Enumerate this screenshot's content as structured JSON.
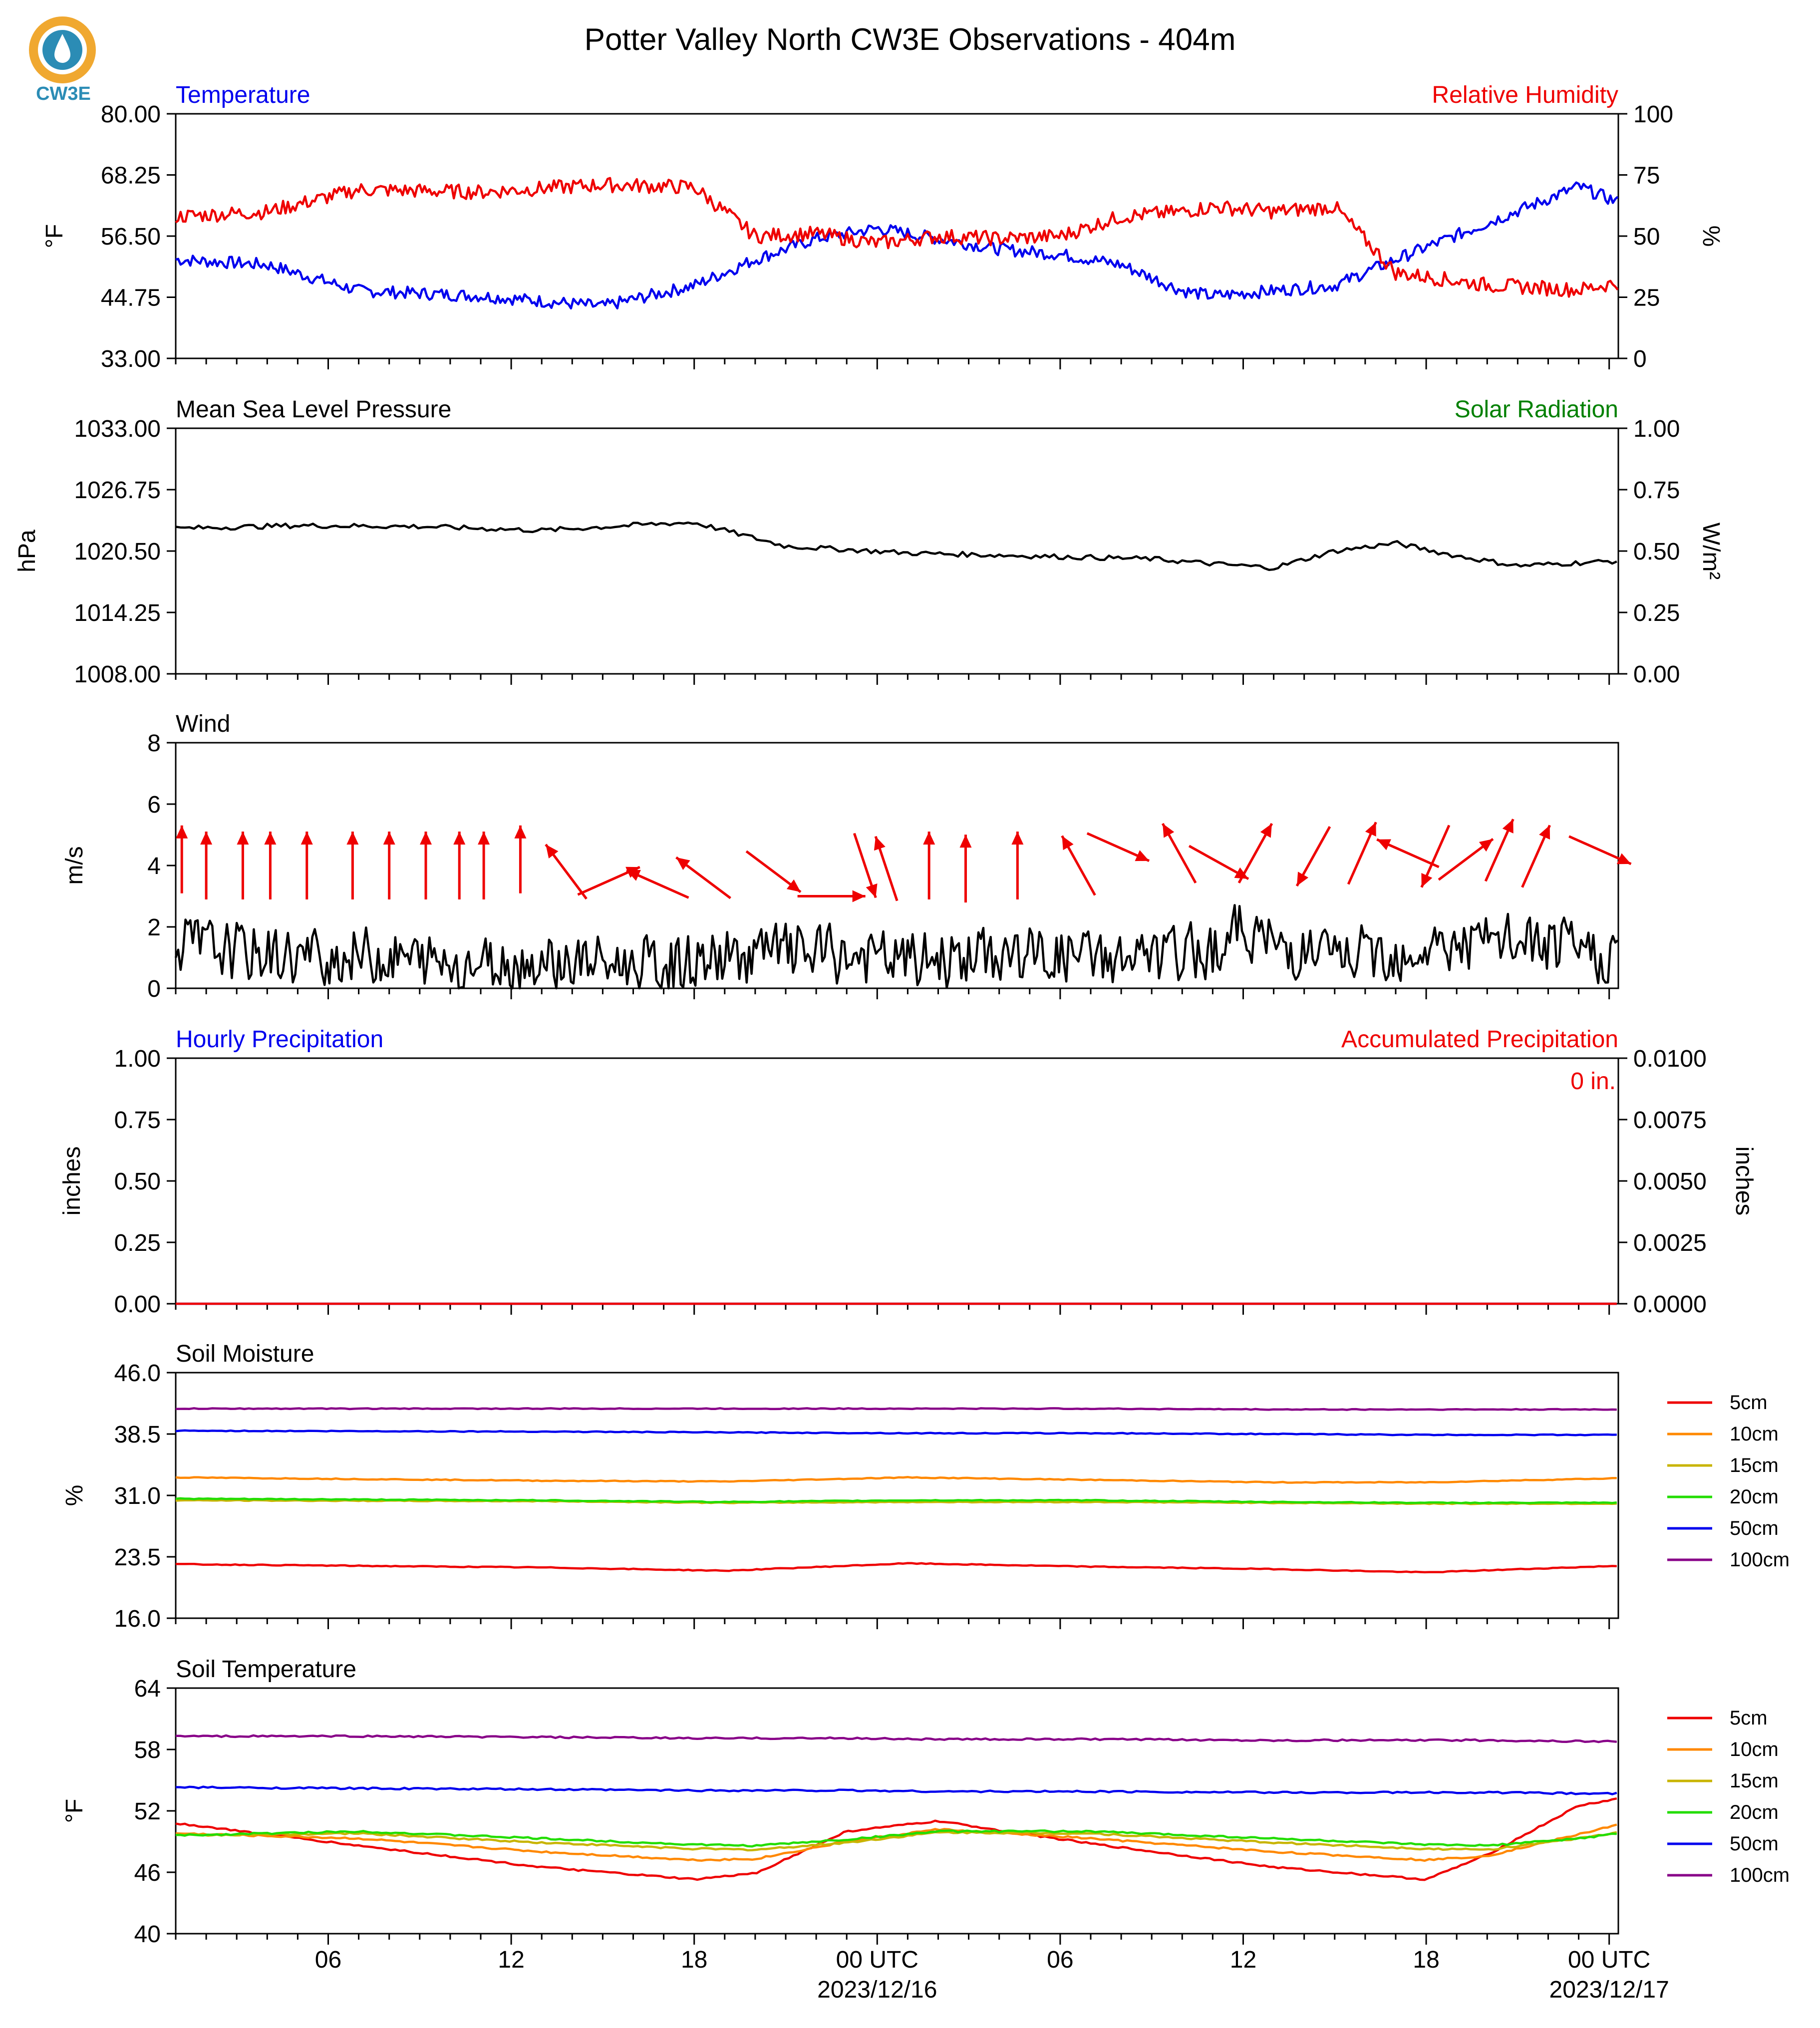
{
  "title": "Potter Valley North CW3E Observations - 404m",
  "logo": {
    "text": "CW3E",
    "colors": [
      "#f0a830",
      "#2b8cb5"
    ]
  },
  "colors": {
    "blue": "#0000ee",
    "red": "#ee0000",
    "green": "#008000",
    "black": "#000000"
  },
  "x_axis": {
    "tick_labels": [
      "06",
      "12",
      "18",
      "00 UTC",
      "06",
      "12",
      "18",
      "00 UTC"
    ],
    "date_labels": [
      "2023/12/16",
      "2023/12/17"
    ]
  },
  "chart_data": [
    {
      "type": "line",
      "title": "Temperature",
      "right_title": "Relative Humidity",
      "ylabel": "°F",
      "ylabel_right": "%",
      "ylim": [
        33.0,
        80.0
      ],
      "ylim_right": [
        0,
        100
      ],
      "yticks": [
        "33.00",
        "44.75",
        "56.50",
        "68.25",
        "80.00"
      ],
      "yticks_right": [
        "0",
        "25",
        "50",
        "75",
        "100"
      ],
      "x_hours": [
        0,
        3,
        6,
        10,
        14,
        17,
        19,
        21,
        23,
        25,
        27,
        29,
        31,
        33,
        34,
        36,
        38,
        40,
        43,
        46,
        47.3
      ],
      "series": [
        {
          "name": "Temperature",
          "color": "#0000ee",
          "axis": "left",
          "values": [
            52,
            51,
            46,
            45,
            43,
            47,
            52,
            56,
            58,
            56,
            54,
            53,
            51,
            46,
            45,
            46,
            47,
            52,
            59,
            66,
            63
          ]
        },
        {
          "name": "Relative Humidity",
          "color": "#ee0000",
          "axis": "right",
          "values": [
            58,
            60,
            69,
            68,
            71,
            70,
            50,
            51,
            47,
            50,
            49,
            50,
            58,
            60,
            62,
            60,
            62,
            35,
            30,
            28,
            31
          ]
        }
      ]
    },
    {
      "type": "line",
      "title": "Mean Sea Level Pressure",
      "right_title": "Solar Radiation",
      "ylabel": "hPa",
      "ylabel_right": "W/m²",
      "ylim": [
        1008.0,
        1033.0
      ],
      "ylim_right": [
        0.0,
        1.0
      ],
      "yticks": [
        "1008.00",
        "1014.25",
        "1020.50",
        "1026.75",
        "1033.00"
      ],
      "yticks_right": [
        "0.00",
        "0.25",
        "0.50",
        "0.75",
        "1.00"
      ],
      "x_hours": [
        0,
        4,
        8,
        12,
        16,
        17,
        20,
        24,
        28,
        32,
        34,
        36,
        38,
        40,
        42,
        44,
        46,
        47.3
      ],
      "series": [
        {
          "name": "Mean Sea Level Pressure",
          "color": "#000000",
          "values": [
            1022.8,
            1023.1,
            1023.0,
            1022.6,
            1023.3,
            1023.4,
            1021.0,
            1020.3,
            1020.0,
            1019.7,
            1019.2,
            1018.8,
            1020.5,
            1021.3,
            1020.0,
            1019.0,
            1019.3,
            1019.5
          ]
        }
      ]
    },
    {
      "type": "line",
      "title": "Wind",
      "ylabel": "m/s",
      "ylim": [
        0,
        8
      ],
      "yticks": [
        "0",
        "2",
        "4",
        "6",
        "8"
      ],
      "x_hours": [
        0,
        2,
        4,
        6,
        8,
        10,
        12,
        14,
        16,
        18,
        20,
        22,
        24,
        26,
        28,
        30,
        32,
        34,
        35,
        36,
        38,
        40,
        42,
        44,
        46,
        47.3
      ],
      "series": [
        {
          "name": "Wind",
          "color": "#000000",
          "values": [
            1.5,
            1.2,
            1.0,
            1.1,
            0.9,
            0.8,
            0.9,
            0.8,
            0.7,
            1.0,
            1.2,
            1.0,
            0.9,
            1.0,
            1.1,
            1.0,
            0.9,
            1.3,
            2.0,
            1.4,
            1.0,
            1.2,
            1.4,
            1.5,
            1.2,
            1.0
          ]
        }
      ],
      "barbs": {
        "color": "#ee0000",
        "x_hours": [
          0.2,
          1.0,
          2.2,
          3.1,
          4.3,
          5.8,
          7.0,
          8.2,
          9.3,
          10.1,
          11.3,
          12.8,
          14.2,
          15.8,
          17.3,
          19.6,
          21.5,
          22.6,
          23.3,
          24.7,
          25.9,
          27.6,
          29.6,
          30.9,
          32.9,
          34.2,
          35.4,
          37.3,
          38.9,
          40.4,
          41.3,
          42.3,
          43.4,
          44.6,
          46.7
        ],
        "speeds": [
          4.2,
          4.0,
          4.0,
          4.0,
          4.0,
          4.0,
          4.0,
          4.0,
          4.0,
          4.0,
          4.2,
          3.8,
          3.5,
          3.4,
          3.6,
          3.8,
          3.0,
          4.0,
          3.9,
          4.0,
          3.9,
          4.0,
          4.0,
          4.6,
          4.4,
          4.1,
          4.4,
          4.3,
          4.4,
          4.4,
          4.3,
          4.2,
          4.5,
          4.3,
          4.5
        ],
        "dx": [
          0,
          0,
          0,
          0,
          0,
          0,
          0,
          0,
          0,
          0,
          0,
          -0.6,
          0.9,
          -0.9,
          -0.8,
          0.8,
          1.0,
          0.3,
          -0.3,
          0,
          0,
          0,
          -0.5,
          0.9,
          -0.5,
          0.9,
          0.5,
          -0.5,
          0.4,
          -0.9,
          -0.4,
          0.8,
          0.4,
          0.4,
          0.9
        ],
        "dy": [
          -1,
          -1,
          -1,
          -1,
          -1,
          -1,
          -1,
          -1,
          -1,
          -1,
          -1,
          -0.8,
          -0.4,
          -0.4,
          -0.6,
          0.6,
          0,
          0.9,
          -0.9,
          -1,
          -1,
          -1,
          -0.9,
          0.4,
          -0.9,
          0.5,
          -0.9,
          0.9,
          -0.9,
          -0.4,
          0.9,
          -0.6,
          -0.9,
          -0.9,
          0.4
        ]
      }
    },
    {
      "type": "line",
      "title": "Hourly Precipitation",
      "right_title": "Accumulated Precipitation",
      "annotation": "0 in.",
      "ylabel": "inches",
      "ylabel_right": "inches",
      "ylim": [
        0.0,
        1.0
      ],
      "ylim_right": [
        0.0,
        0.01
      ],
      "yticks": [
        "0.00",
        "0.25",
        "0.50",
        "0.75",
        "1.00"
      ],
      "yticks_right": [
        "0.0000",
        "0.0025",
        "0.0050",
        "0.0075",
        "0.0100"
      ],
      "x_hours": [
        0,
        47.3
      ],
      "series": [
        {
          "name": "Hourly Precipitation",
          "color": "#0000ee",
          "values": [
            0,
            0
          ]
        },
        {
          "name": "Accumulated Precipitation",
          "color": "#ee0000",
          "values": [
            0,
            0
          ]
        }
      ]
    },
    {
      "type": "line",
      "title": "Soil Moisture",
      "ylabel": "%",
      "ylim": [
        16.0,
        46.0
      ],
      "yticks": [
        "16.0",
        "23.5",
        "31.0",
        "38.5",
        "46.0"
      ],
      "legend": "right",
      "x_hours": [
        0,
        12,
        18,
        24,
        30,
        36,
        41,
        47.3
      ],
      "series": [
        {
          "name": "5cm",
          "color": "#ee0000",
          "values": [
            22.6,
            22.2,
            21.8,
            22.7,
            22.3,
            22.0,
            21.6,
            22.4
          ]
        },
        {
          "name": "10cm",
          "color": "#ff8800",
          "values": [
            33.2,
            32.8,
            32.7,
            33.2,
            32.9,
            32.6,
            32.6,
            33.1
          ]
        },
        {
          "name": "15cm",
          "color": "#c8b400",
          "values": [
            30.4,
            30.3,
            30.1,
            30.2,
            30.2,
            30.1,
            30.0,
            30.0
          ]
        },
        {
          "name": "20cm",
          "color": "#22dd00",
          "values": [
            30.6,
            30.4,
            30.2,
            30.4,
            30.4,
            30.2,
            30.1,
            30.1
          ]
        },
        {
          "name": "50cm",
          "color": "#0000ee",
          "values": [
            38.9,
            38.8,
            38.7,
            38.6,
            38.6,
            38.5,
            38.4,
            38.4
          ]
        },
        {
          "name": "100cm",
          "color": "#880088",
          "values": [
            41.6,
            41.6,
            41.6,
            41.6,
            41.6,
            41.5,
            41.5,
            41.5
          ]
        }
      ]
    },
    {
      "type": "line",
      "title": "Soil Temperature",
      "ylabel": "°F",
      "ylim": [
        40,
        64
      ],
      "yticks": [
        "40",
        "46",
        "52",
        "58",
        "64"
      ],
      "legend": "right",
      "x_hours": [
        0,
        6,
        12,
        17,
        19,
        22,
        25,
        30,
        36,
        41,
        43,
        46,
        47.3
      ],
      "series": [
        {
          "name": "5cm",
          "color": "#ee0000",
          "values": [
            50.8,
            48.6,
            46.5,
            45.3,
            45.9,
            50.0,
            51.0,
            48.8,
            46.5,
            45.3,
            47.7,
            52.5,
            53.2
          ]
        },
        {
          "name": "10cm",
          "color": "#ff8800",
          "values": [
            49.8,
            49.3,
            48.0,
            47.2,
            47.3,
            49.0,
            50.2,
            49.3,
            48.0,
            47.2,
            47.6,
            49.7,
            50.7
          ]
        },
        {
          "name": "15cm",
          "color": "#c8b400",
          "values": [
            49.6,
            49.8,
            48.9,
            48.3,
            48.2,
            48.9,
            49.9,
            49.8,
            48.9,
            48.3,
            48.2,
            49.3,
            49.9
          ]
        },
        {
          "name": "20cm",
          "color": "#22dd00",
          "values": [
            49.6,
            50.0,
            49.3,
            48.7,
            48.6,
            49.2,
            50.0,
            50.0,
            49.3,
            48.7,
            48.6,
            49.3,
            49.8
          ]
        },
        {
          "name": "50cm",
          "color": "#0000ee",
          "values": [
            54.3,
            54.2,
            54.1,
            54.0,
            54.0,
            54.0,
            53.9,
            53.9,
            53.8,
            53.8,
            53.8,
            53.7,
            53.7
          ]
        },
        {
          "name": "100cm",
          "color": "#880088",
          "values": [
            59.3,
            59.3,
            59.2,
            59.1,
            59.1,
            59.1,
            59.0,
            59.0,
            58.9,
            58.9,
            58.9,
            58.8,
            58.8
          ]
        }
      ]
    }
  ]
}
